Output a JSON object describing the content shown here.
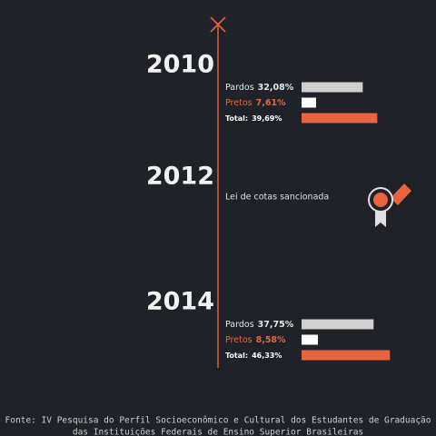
{
  "entries": [
    {
      "year": "2010",
      "items": [
        {
          "name": "Pardos",
          "value": 32.08,
          "value_label": "32,08%"
        },
        {
          "name": "Pretos",
          "value": 7.61,
          "value_label": "7,61%"
        },
        {
          "name": "Total:",
          "value": 39.69,
          "value_label": "39,69%"
        }
      ]
    },
    {
      "year": "2012",
      "note": "Lei de cotas sancionada"
    },
    {
      "year": "2014",
      "items": [
        {
          "name": "Pardos",
          "value": 37.75,
          "value_label": "37,75%"
        },
        {
          "name": "Pretos",
          "value": 8.58,
          "value_label": "8,58%"
        },
        {
          "name": "Total:",
          "value": 46.33,
          "value_label": "46,33%"
        }
      ]
    }
  ],
  "source": [
    "Fonte: IV Pesquisa do Perfil Socioeconômico e Cultural dos Estudantes de Graduação",
    "das Instituições Federais de Ensino Superior Brasileiras"
  ]
}
